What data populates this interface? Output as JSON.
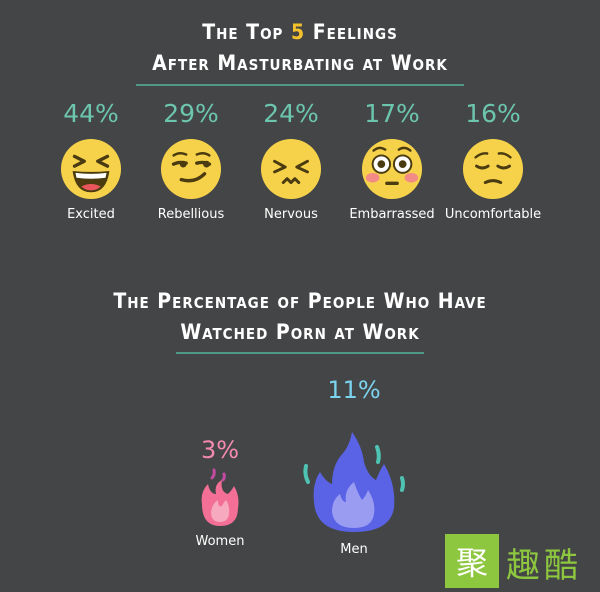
{
  "header1": {
    "line1_pre": "The Top ",
    "line1_num": "5",
    "line1_post": " Feelings",
    "line2": "After Masturbating at Work"
  },
  "feelings": [
    {
      "pct": "44%",
      "label": "Excited",
      "icon": "laughing-face-icon"
    },
    {
      "pct": "29%",
      "label": "Rebellious",
      "icon": "smirking-face-icon"
    },
    {
      "pct": "24%",
      "label": "Nervous",
      "icon": "persevering-face-icon"
    },
    {
      "pct": "17%",
      "label": "Embarrassed",
      "icon": "flushed-face-icon"
    },
    {
      "pct": "16%",
      "label": "Uncomfortable",
      "icon": "pensive-face-icon"
    }
  ],
  "header2": {
    "line1": "The Percentage of People Who Have",
    "line2": "Watched Porn at Work"
  },
  "genders": [
    {
      "pct": "3%",
      "label": "Women",
      "icon": "pink-flame-icon",
      "color": "#f36f96"
    },
    {
      "pct": "11%",
      "label": "Men",
      "icon": "blue-flame-icon",
      "color": "#5a63e6"
    }
  ],
  "colors": {
    "background": "#444546",
    "accent_green": "#6cc6ad",
    "highlight_yellow": "#f6c22c",
    "emoji_yellow": "#f6d24a",
    "pct_women": "#f48ab0",
    "pct_men": "#7cd3ef"
  },
  "watermark": {
    "logo_text": "趣酷",
    "logo_icon": "ju-logo-icon"
  }
}
